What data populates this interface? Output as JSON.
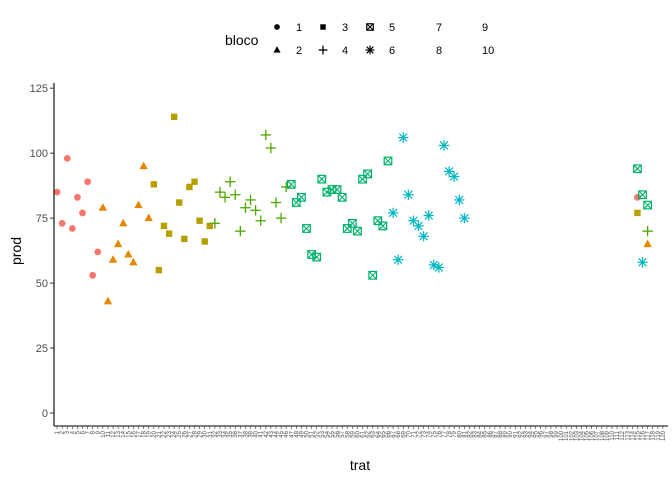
{
  "chart_data": {
    "type": "scatter",
    "xlabel": "trat",
    "ylabel": "prod",
    "ylim": [
      -5,
      127
    ],
    "y_ticks": [
      0,
      25,
      50,
      75,
      100,
      125
    ],
    "x_categories": 120,
    "grid": false,
    "legend": {
      "title": "bloco",
      "position": "top",
      "entries": [
        {
          "label": "1",
          "shape": "circle"
        },
        {
          "label": "2",
          "shape": "triangle"
        },
        {
          "label": "3",
          "shape": "square"
        },
        {
          "label": "4",
          "shape": "plus"
        },
        {
          "label": "5",
          "shape": "boxed-x"
        },
        {
          "label": "6",
          "shape": "asterisk"
        },
        {
          "label": "7",
          "shape": "none"
        },
        {
          "label": "8",
          "shape": "none"
        },
        {
          "label": "9",
          "shape": "none"
        },
        {
          "label": "10",
          "shape": "none"
        }
      ]
    },
    "series": [
      {
        "name": "1",
        "shape": "circle",
        "color": "#F8766D",
        "points": [
          [
            1,
            85
          ],
          [
            2,
            73
          ],
          [
            3,
            98
          ],
          [
            4,
            71
          ],
          [
            5,
            83
          ],
          [
            6,
            77
          ],
          [
            7,
            89
          ],
          [
            8,
            53
          ],
          [
            9,
            62
          ],
          [
            115,
            83
          ]
        ]
      },
      {
        "name": "2",
        "shape": "triangle",
        "color": "#E58700",
        "points": [
          [
            10,
            79
          ],
          [
            11,
            43
          ],
          [
            12,
            59
          ],
          [
            13,
            65
          ],
          [
            14,
            73
          ],
          [
            15,
            61
          ],
          [
            16,
            58
          ],
          [
            17,
            80
          ],
          [
            18,
            95
          ],
          [
            19,
            75
          ],
          [
            117,
            65
          ]
        ]
      },
      {
        "name": "3",
        "shape": "square",
        "color": "#B79F00",
        "points": [
          [
            20,
            88
          ],
          [
            21,
            55
          ],
          [
            22,
            72
          ],
          [
            23,
            69
          ],
          [
            24,
            114
          ],
          [
            25,
            81
          ],
          [
            26,
            67
          ],
          [
            27,
            87
          ],
          [
            28,
            89
          ],
          [
            29,
            74
          ],
          [
            30,
            66
          ],
          [
            31,
            72
          ],
          [
            115,
            77
          ]
        ]
      },
      {
        "name": "4",
        "shape": "plus",
        "color": "#4EA600",
        "points": [
          [
            32,
            73
          ],
          [
            33,
            85
          ],
          [
            34,
            83
          ],
          [
            35,
            89
          ],
          [
            36,
            84
          ],
          [
            37,
            70
          ],
          [
            38,
            79
          ],
          [
            39,
            82
          ],
          [
            40,
            78
          ],
          [
            41,
            74
          ],
          [
            42,
            107
          ],
          [
            43,
            102
          ],
          [
            44,
            81
          ],
          [
            45,
            75
          ],
          [
            46,
            87
          ],
          [
            117,
            70
          ]
        ]
      },
      {
        "name": "5",
        "shape": "boxed-x",
        "color": "#00B06A",
        "points": [
          [
            47,
            88
          ],
          [
            48,
            81
          ],
          [
            49,
            83
          ],
          [
            50,
            71
          ],
          [
            51,
            61
          ],
          [
            52,
            60
          ],
          [
            53,
            90
          ],
          [
            54,
            85
          ],
          [
            55,
            86
          ],
          [
            56,
            86
          ],
          [
            57,
            83
          ],
          [
            58,
            71
          ],
          [
            59,
            73
          ],
          [
            60,
            70
          ],
          [
            61,
            90
          ],
          [
            62,
            92
          ],
          [
            63,
            53
          ],
          [
            64,
            74
          ],
          [
            65,
            72
          ],
          [
            66,
            97
          ],
          [
            115,
            94
          ],
          [
            116,
            84
          ],
          [
            117,
            80
          ]
        ]
      },
      {
        "name": "6",
        "shape": "asterisk",
        "color": "#00B8C2",
        "points": [
          [
            67,
            77
          ],
          [
            68,
            59
          ],
          [
            69,
            106
          ],
          [
            70,
            84
          ],
          [
            71,
            74
          ],
          [
            72,
            72
          ],
          [
            73,
            68
          ],
          [
            74,
            76
          ],
          [
            75,
            57
          ],
          [
            76,
            56
          ],
          [
            77,
            103
          ],
          [
            78,
            93
          ],
          [
            79,
            91
          ],
          [
            80,
            82
          ],
          [
            81,
            75
          ],
          [
            116,
            58
          ]
        ]
      }
    ]
  }
}
